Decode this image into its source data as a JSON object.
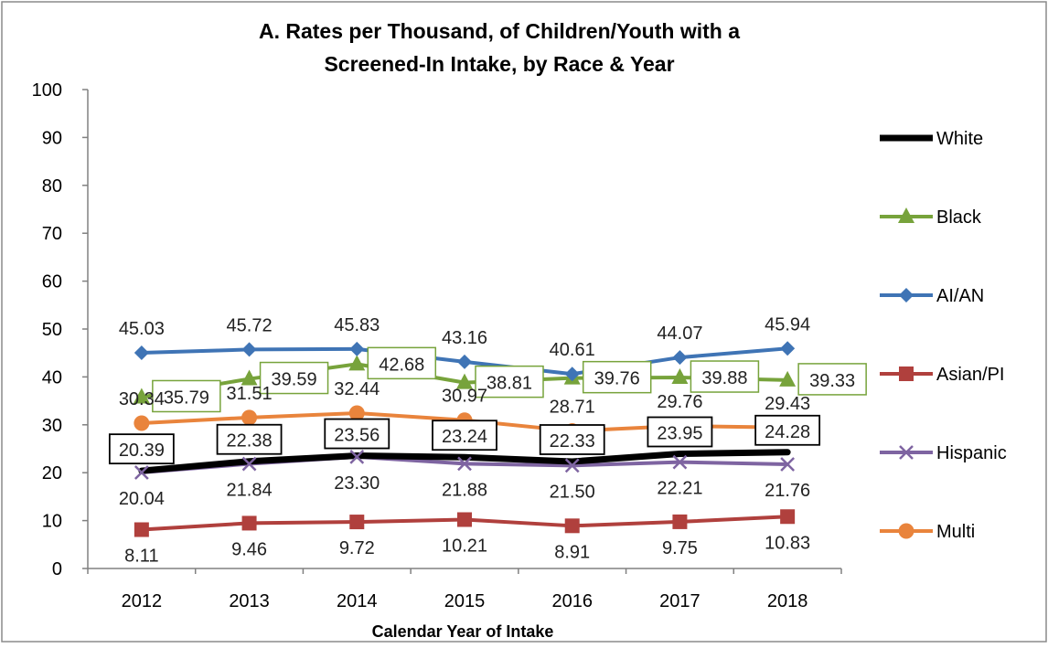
{
  "chart_data": {
    "type": "line",
    "title_line1": "A. Rates per Thousand,  of Children/Youth with a",
    "title_line2": "Screened-In Intake, by Race & Year",
    "xlabel": "Calendar Year of Intake",
    "ylabel": "",
    "ylim": [
      0,
      100
    ],
    "yticks": [
      "0",
      "10",
      "20",
      "30",
      "40",
      "50",
      "60",
      "70",
      "80",
      "90",
      "100"
    ],
    "categories": [
      "2012",
      "2013",
      "2014",
      "2015",
      "2016",
      "2017",
      "2018"
    ],
    "legend_position": "right",
    "series": [
      {
        "name": "White",
        "color": "#000000",
        "marker": "none",
        "values": [
          20.39,
          22.38,
          23.56,
          23.24,
          22.33,
          23.95,
          24.28
        ],
        "labels": [
          "20.39",
          "22.38",
          "23.56",
          "23.24",
          "22.33",
          "23.95",
          "24.28"
        ],
        "label_style": "box-black"
      },
      {
        "name": "Black",
        "color": "#77A33B",
        "marker": "triangle",
        "values": [
          35.79,
          39.59,
          42.68,
          38.81,
          39.76,
          39.88,
          39.33
        ],
        "labels": [
          "35.79",
          "39.59",
          "42.68",
          "38.81",
          "39.76",
          "39.88",
          "39.33"
        ],
        "label_style": "box-green"
      },
      {
        "name": "AI/AN",
        "color": "#3F74B5",
        "marker": "diamond",
        "values": [
          45.03,
          45.72,
          45.83,
          43.16,
          40.61,
          44.07,
          45.94
        ],
        "labels": [
          "45.03",
          "45.72",
          "45.83",
          "43.16",
          "40.61",
          "44.07",
          "45.94"
        ],
        "label_style": "above"
      },
      {
        "name": "Asian/PI",
        "color": "#B0403D",
        "marker": "square",
        "values": [
          8.11,
          9.46,
          9.72,
          10.21,
          8.91,
          9.75,
          10.83
        ],
        "labels": [
          "8.11",
          "9.46",
          "9.72",
          "10.21",
          "8.91",
          "9.75",
          "10.83"
        ],
        "label_style": "below"
      },
      {
        "name": "Hispanic",
        "color": "#7E64A1",
        "marker": "x",
        "values": [
          20.04,
          21.84,
          23.3,
          21.88,
          21.5,
          22.21,
          21.76
        ],
        "labels": [
          "20.04",
          "21.84",
          "23.30",
          "21.88",
          "21.50",
          "22.21",
          "21.76"
        ],
        "label_style": "below"
      },
      {
        "name": "Multi",
        "color": "#E9843C",
        "marker": "circle",
        "values": [
          30.34,
          31.51,
          32.44,
          30.97,
          28.71,
          29.76,
          29.43
        ],
        "labels": [
          "30.34",
          "31.51",
          "32.44",
          "30.97",
          "28.71",
          "29.76",
          "29.43"
        ],
        "label_style": "above"
      }
    ]
  }
}
